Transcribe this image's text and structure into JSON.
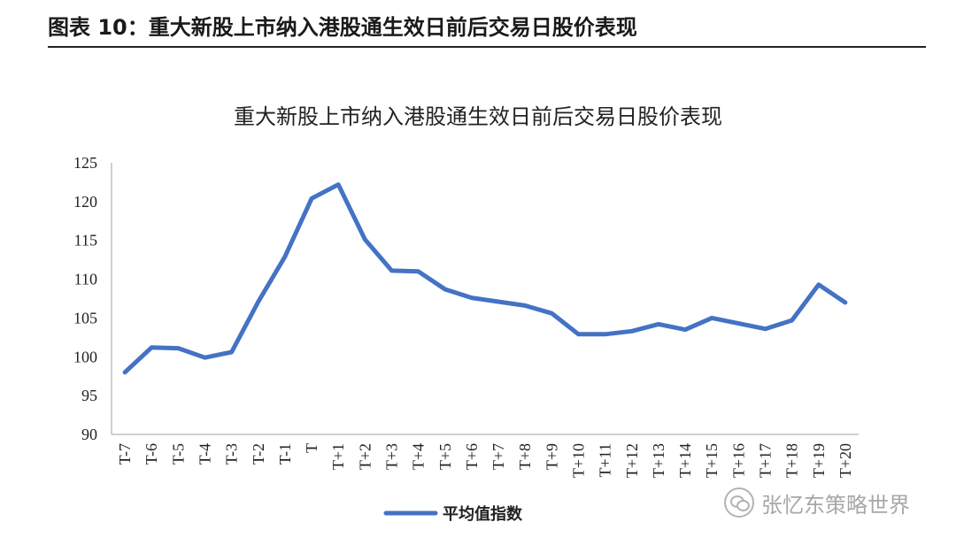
{
  "header": {
    "label": "图表 10：重大新股上市纳入港股通生效日前后交易日股价表现"
  },
  "watermark": {
    "text": "张忆东策略世界"
  },
  "chart_data": {
    "type": "line",
    "title": "重大新股上市纳入港股通生效日前后交易日股价表现",
    "xlabel": "",
    "ylabel": "",
    "ylim": [
      90,
      125
    ],
    "yticks": [
      90,
      95,
      100,
      105,
      110,
      115,
      120,
      125
    ],
    "categories": [
      "T-7",
      "T-6",
      "T-5",
      "T-4",
      "T-3",
      "T-2",
      "T-1",
      "T",
      "T+1",
      "T+2",
      "T+3",
      "T+4",
      "T+5",
      "T+6",
      "T+7",
      "T+8",
      "T+9",
      "T+10",
      "T+11",
      "T+12",
      "T+13",
      "T+14",
      "T+15",
      "T+16",
      "T+17",
      "T+18",
      "T+19",
      "T+20"
    ],
    "series": [
      {
        "name": "平均值指数",
        "color": "#4472C4",
        "values": [
          98.0,
          101.2,
          101.1,
          99.9,
          100.6,
          107.1,
          112.9,
          120.4,
          122.2,
          115.1,
          111.1,
          111.0,
          108.7,
          107.6,
          107.1,
          106.6,
          105.6,
          102.9,
          102.9,
          103.3,
          104.2,
          103.5,
          105.0,
          104.3,
          103.6,
          104.7,
          109.3,
          107.0
        ]
      }
    ],
    "grid": false,
    "legend": "bottom-center"
  }
}
